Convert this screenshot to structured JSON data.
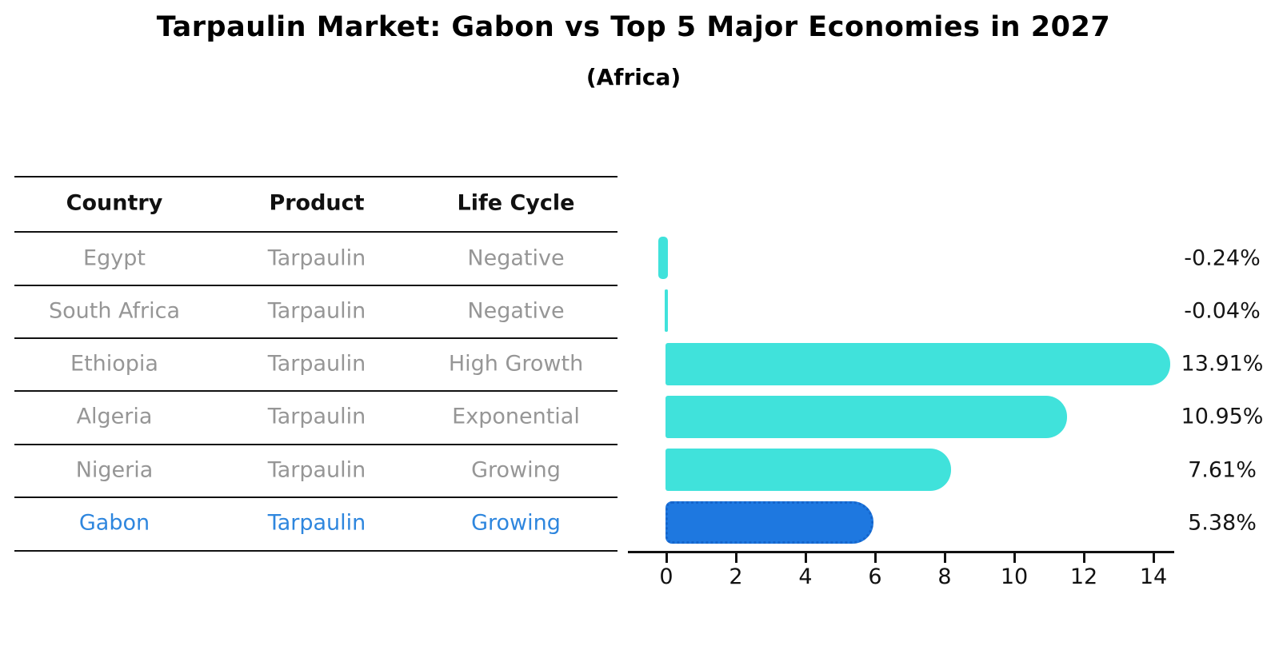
{
  "title": "Tarpaulin Market: Gabon vs Top 5 Major Economies in 2027",
  "subtitle": "(Africa)",
  "table": {
    "headers": [
      "Country",
      "Product",
      "Life Cycle"
    ],
    "rows": [
      {
        "country": "Egypt",
        "product": "Tarpaulin",
        "life_cycle": "Negative",
        "highlighted": false
      },
      {
        "country": "South Africa",
        "product": "Tarpaulin",
        "life_cycle": "Negative",
        "highlighted": false
      },
      {
        "country": "Ethiopia",
        "product": "Tarpaulin",
        "life_cycle": "High Growth",
        "highlighted": false
      },
      {
        "country": "Algeria",
        "product": "Tarpaulin",
        "life_cycle": "Exponential",
        "highlighted": false
      },
      {
        "country": "Nigeria",
        "product": "Tarpaulin",
        "life_cycle": "Growing",
        "highlighted": false
      },
      {
        "country": "Gabon",
        "product": "Tarpaulin",
        "life_cycle": "Growing",
        "highlighted": true
      }
    ]
  },
  "chart_data": {
    "type": "bar",
    "orientation": "horizontal",
    "title": "Tarpaulin Market: Gabon vs Top 5 Major Economies in 2027",
    "subtitle": "(Africa)",
    "categories": [
      "Egypt",
      "South Africa",
      "Ethiopia",
      "Algeria",
      "Nigeria",
      "Gabon"
    ],
    "values": [
      -0.24,
      -0.04,
      13.91,
      10.95,
      7.61,
      5.38
    ],
    "value_labels": [
      "-0.24%",
      "-0.04%",
      "13.91%",
      "10.95%",
      "7.61%",
      "5.38%"
    ],
    "x_ticks": [
      "0",
      "2",
      "4",
      "6",
      "8",
      "10",
      "12",
      "14"
    ],
    "xlim": [
      -1,
      14.6
    ],
    "grid": "off",
    "legend": "none",
    "highlight_index": 5,
    "highlight_style": "dotted-border"
  },
  "colors": {
    "bar": "#40E2DB",
    "highlight_bar": "#1E78E0",
    "highlight_border": "#1565CB",
    "highlight_text": "#2E86DE",
    "row_text": "#969696",
    "header_text": "#111111",
    "axis": "#111111",
    "value_label": "#151515"
  }
}
